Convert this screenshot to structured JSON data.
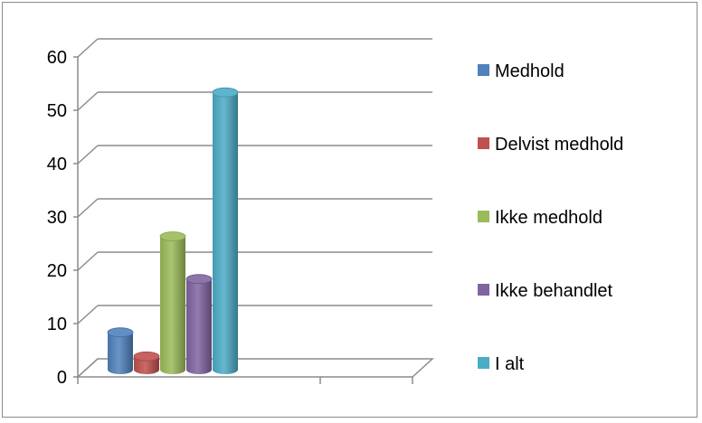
{
  "chart_data": {
    "type": "bar",
    "title": "",
    "xlabel": "",
    "ylabel": "",
    "ylim": [
      0,
      60
    ],
    "yticks": [
      0,
      10,
      20,
      30,
      40,
      50,
      60
    ],
    "style": "3d-cylinder",
    "grid": true,
    "legend_position": "right",
    "series": [
      {
        "name": "Medhold",
        "value": 7,
        "color": "#4f81bd"
      },
      {
        "name": "Delvist medhold",
        "value": 2.5,
        "color": "#c0504d"
      },
      {
        "name": "Ikke medhold",
        "value": 25,
        "color": "#9bbb59"
      },
      {
        "name": "Ikke behandlet",
        "value": 17,
        "color": "#8064a2"
      },
      {
        "name": "I alt",
        "value": 52,
        "color": "#4bacc6"
      }
    ]
  }
}
